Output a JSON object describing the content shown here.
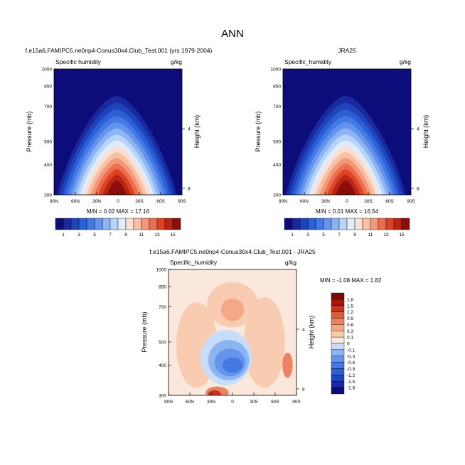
{
  "figure": {
    "title": "ANN"
  },
  "panels": {
    "model": {
      "title": "f.e15a6.FAMIPC5.ne0np4-Conus30x4.Club_Test.001 (yrs 1979-2004)",
      "field": "Specific humidity",
      "units": "g/kg",
      "ylabel": "Pressure (mb)",
      "y2label": "Height (km)",
      "min_max": "MIN =  0.02  MAX =  17.16"
    },
    "obs": {
      "title": "JRA25",
      "field": "Specific_humidity",
      "units": "g/kg",
      "ylabel": "Pressure (mb)",
      "y2label": "Height (km)",
      "min_max": "MIN =  0.01  MAX =  16.54"
    },
    "diff": {
      "title": "f.e15a6.FAMIPC5.ne0np4-Conus30x4.Club_Test.001 - JRA25",
      "field": "Specific_humidity",
      "units": "g/kg",
      "ylabel": "Pressure (mb)",
      "y2label": "Height (km)",
      "min_max": "MIN = -1.08  MAX =  1.82"
    }
  },
  "chart_data": [
    {
      "type": "heatmap",
      "title": "f.e15a6.FAMIPC5.ne0np4-Conus30x4.Club_Test.001 (yrs 1979-2004)",
      "field": "Specific humidity",
      "units": "g/kg",
      "xlabel": "",
      "ylabel": "Pressure (mb)",
      "y2label": "Height (km)",
      "x_ticks": [
        "90N",
        "60N",
        "30N",
        "0",
        "30S",
        "60S",
        "90S"
      ],
      "x_range": [
        90,
        -90
      ],
      "y_ticks": [
        "300",
        "400",
        "500",
        "700",
        "850",
        "1000"
      ],
      "y_range_mb": [
        1000,
        300
      ],
      "y_scale": "log",
      "y2_ticks": [
        "4",
        "8"
      ],
      "min": 0.02,
      "max": 17.16,
      "peak_latitude": 0,
      "colorbar_levels": [
        1,
        2,
        3,
        4,
        5,
        6,
        7,
        8,
        9,
        10,
        11,
        12,
        13,
        14,
        15
      ],
      "colorbar_labels": [
        "1",
        "3",
        "5",
        "7",
        "9",
        "11",
        "13",
        "15"
      ]
    },
    {
      "type": "heatmap",
      "title": "JRA25",
      "field": "Specific_humidity",
      "units": "g/kg",
      "xlabel": "",
      "ylabel": "Pressure (mb)",
      "y2label": "Height (km)",
      "x_ticks": [
        "90N",
        "60N",
        "30N",
        "0",
        "30S",
        "60S",
        "90S"
      ],
      "x_range": [
        90,
        -90
      ],
      "y_ticks": [
        "300",
        "400",
        "500",
        "700",
        "850",
        "1000"
      ],
      "y_range_mb": [
        1000,
        300
      ],
      "y_scale": "log",
      "y2_ticks": [
        "4",
        "8"
      ],
      "min": 0.01,
      "max": 16.54,
      "peak_latitude": 0,
      "colorbar_levels": [
        1,
        2,
        3,
        4,
        5,
        6,
        7,
        8,
        9,
        10,
        11,
        12,
        13,
        14,
        15
      ],
      "colorbar_labels": [
        "1",
        "3",
        "5",
        "7",
        "9",
        "11",
        "13",
        "15"
      ]
    },
    {
      "type": "heatmap",
      "title": "f.e15a6.FAMIPC5.ne0np4-Conus30x4.Club_Test.001 - JRA25",
      "field": "Specific_humidity",
      "units": "g/kg",
      "xlabel": "",
      "ylabel": "Pressure (mb)",
      "y2label": "Height (km)",
      "x_ticks": [
        "90N",
        "60N",
        "30N",
        "0",
        "30S",
        "60S",
        "90S"
      ],
      "x_range": [
        90,
        -90
      ],
      "y_ticks": [
        "300",
        "400",
        "500",
        "700",
        "850",
        "1000"
      ],
      "y_range_mb": [
        1000,
        300
      ],
      "y_scale": "log",
      "y2_ticks": [
        "4",
        "8"
      ],
      "min": -1.08,
      "max": 1.82,
      "colorbar_levels": [
        -1.8,
        -1.5,
        -1.2,
        -0.9,
        -0.6,
        -0.3,
        -0.1,
        0,
        0.1,
        0.3,
        0.6,
        0.9,
        1.2,
        1.5,
        1.8
      ],
      "colorbar_labels": [
        "1.8",
        "1.5",
        "1.2",
        "0.9",
        "0.6",
        "0.3",
        "0.1",
        "0",
        "-0.1",
        "-0.3",
        "-0.6",
        "-0.9",
        "-1.2",
        "-1.5",
        "-1.8"
      ]
    }
  ],
  "colors": {
    "abs_palette": [
      "#0c0c7a",
      "#1a2a9c",
      "#1e44bd",
      "#2b5fd6",
      "#4478e4",
      "#6494eb",
      "#8cb4f2",
      "#b8d4f8",
      "#e0ecfb",
      "#fbe0d2",
      "#f9c0a4",
      "#f4987a",
      "#ec6e4e",
      "#dc4326",
      "#bc2412",
      "#8c0e0a"
    ],
    "diff_palette": [
      "#0c0c7a",
      "#1a2a9c",
      "#1e44bd",
      "#2b5fd6",
      "#4478e4",
      "#6494eb",
      "#8cb4f2",
      "#c8ddf8",
      "#fbe8dc",
      "#f9cbb0",
      "#f4a888",
      "#ec8264",
      "#dc5a3c",
      "#c43620",
      "#a01810",
      "#7a0a08"
    ]
  }
}
